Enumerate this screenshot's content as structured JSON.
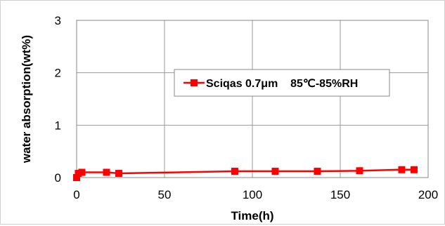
{
  "chart_data": {
    "type": "line",
    "title": "",
    "xlabel": "Time(h)",
    "ylabel": "water absorption(wt%)",
    "xlim": [
      0,
      200
    ],
    "ylim": [
      0,
      3
    ],
    "xticks": [
      "0",
      "50",
      "100",
      "150",
      "200"
    ],
    "yticks": [
      "0",
      "1",
      "2",
      "3"
    ],
    "grid": true,
    "legend_position": "center",
    "series": [
      {
        "name": "Sciqas 0.7μm    85℃-85%RH",
        "color": "#ff0000",
        "marker": "square",
        "x": [
          0,
          1,
          3,
          17,
          24,
          90,
          113,
          137,
          161,
          185,
          192
        ],
        "y": [
          0.0,
          0.08,
          0.1,
          0.1,
          0.08,
          0.12,
          0.12,
          0.12,
          0.13,
          0.15,
          0.15
        ]
      }
    ]
  }
}
